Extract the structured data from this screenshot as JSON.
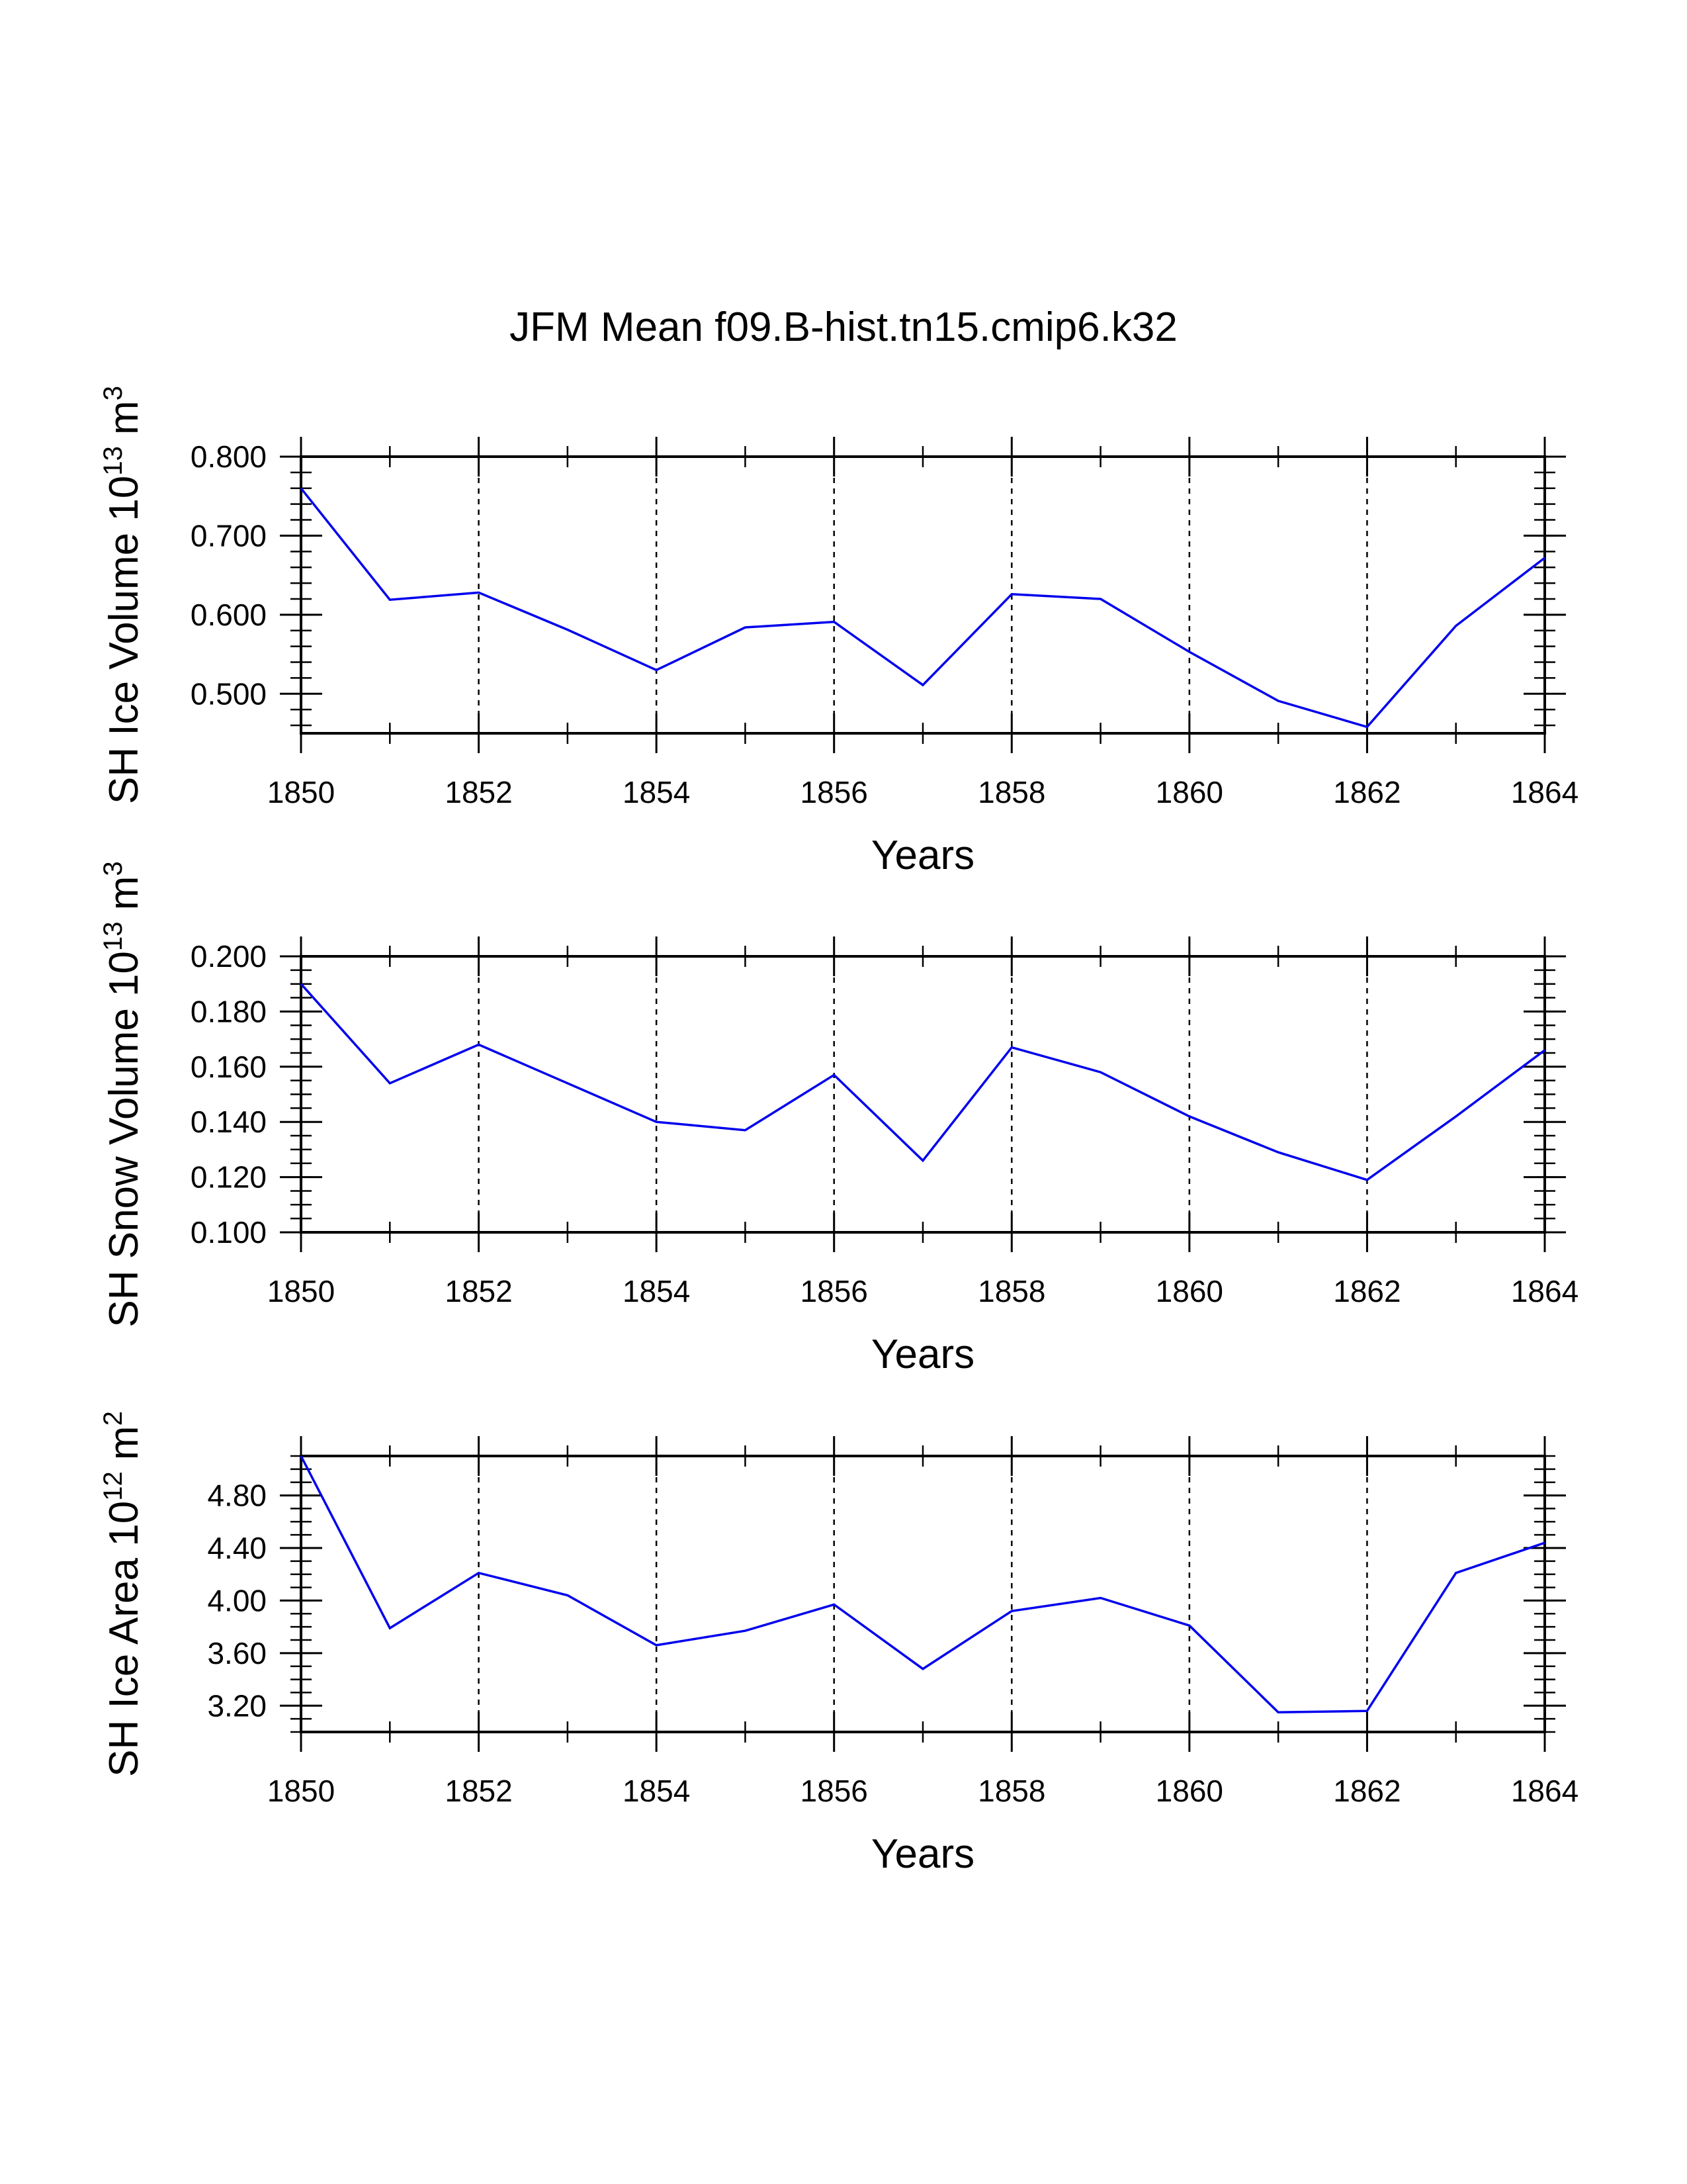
{
  "chart_data": {
    "type": "line",
    "title": "JFM Mean f09.B-hist.tn15.cmip6.k32",
    "panels": [
      {
        "id": "ice-volume",
        "ylabel_main": "SH Ice Volume 10",
        "ylabel_exp": "13",
        "ylabel_unit": " m",
        "ylabel_unit_exp": "3",
        "xlabel": "Years",
        "x": [
          1850,
          1851,
          1852,
          1853,
          1854,
          1855,
          1856,
          1857,
          1858,
          1859,
          1860,
          1861,
          1862,
          1863,
          1864
        ],
        "values": [
          0.76,
          0.619,
          0.628,
          0.581,
          0.53,
          0.584,
          0.591,
          0.511,
          0.626,
          0.62,
          0.553,
          0.491,
          0.458,
          0.586,
          0.672
        ],
        "xlim": [
          1850,
          1864
        ],
        "ylim": [
          0.45,
          0.8
        ],
        "yticks": [
          0.5,
          0.6,
          0.7,
          0.8
        ],
        "yticklabels": [
          "0.500",
          "0.600",
          "0.700",
          "0.800"
        ],
        "yminor": 0.02
      },
      {
        "id": "snow-volume",
        "ylabel_main": "SH Snow Volume 10",
        "ylabel_exp": "13",
        "ylabel_unit": " m",
        "ylabel_unit_exp": "3",
        "xlabel": "Years",
        "x": [
          1850,
          1851,
          1852,
          1853,
          1854,
          1855,
          1856,
          1857,
          1858,
          1859,
          1860,
          1861,
          1862,
          1863,
          1864
        ],
        "values": [
          0.19,
          0.154,
          0.168,
          0.154,
          0.14,
          0.137,
          0.157,
          0.126,
          0.167,
          0.158,
          0.142,
          0.129,
          0.119,
          0.142,
          0.166
        ],
        "xlim": [
          1850,
          1864
        ],
        "ylim": [
          0.1,
          0.2
        ],
        "yticks": [
          0.1,
          0.12,
          0.14,
          0.16,
          0.18,
          0.2
        ],
        "yticklabels": [
          "0.100",
          "0.120",
          "0.140",
          "0.160",
          "0.180",
          "0.200"
        ],
        "yminor": 0.005
      },
      {
        "id": "ice-area",
        "ylabel_main": "SH Ice Area 10",
        "ylabel_exp": "12",
        "ylabel_unit": " m",
        "ylabel_unit_exp": "2",
        "xlabel": "Years",
        "x": [
          1850,
          1851,
          1852,
          1853,
          1854,
          1855,
          1856,
          1857,
          1858,
          1859,
          1860,
          1861,
          1862,
          1863,
          1864
        ],
        "values": [
          5.1,
          3.79,
          4.21,
          4.04,
          3.66,
          3.77,
          3.97,
          3.48,
          3.92,
          4.02,
          3.81,
          3.15,
          3.16,
          4.21,
          4.44
        ],
        "xlim": [
          1850,
          1864
        ],
        "ylim": [
          3.0,
          5.1
        ],
        "yticks": [
          3.2,
          3.6,
          4.0,
          4.4,
          4.8
        ],
        "yticklabels": [
          "3.20",
          "3.60",
          "4.00",
          "4.40",
          "4.80"
        ],
        "yminor": 0.1
      }
    ],
    "xticks": [
      1850,
      1852,
      1854,
      1856,
      1858,
      1860,
      1862,
      1864
    ],
    "xticklabels": [
      "1850",
      "1852",
      "1854",
      "1856",
      "1858",
      "1860",
      "1862",
      "1864"
    ],
    "grid": "dashed vertical at major x ticks",
    "series_color": "#0000ee"
  }
}
